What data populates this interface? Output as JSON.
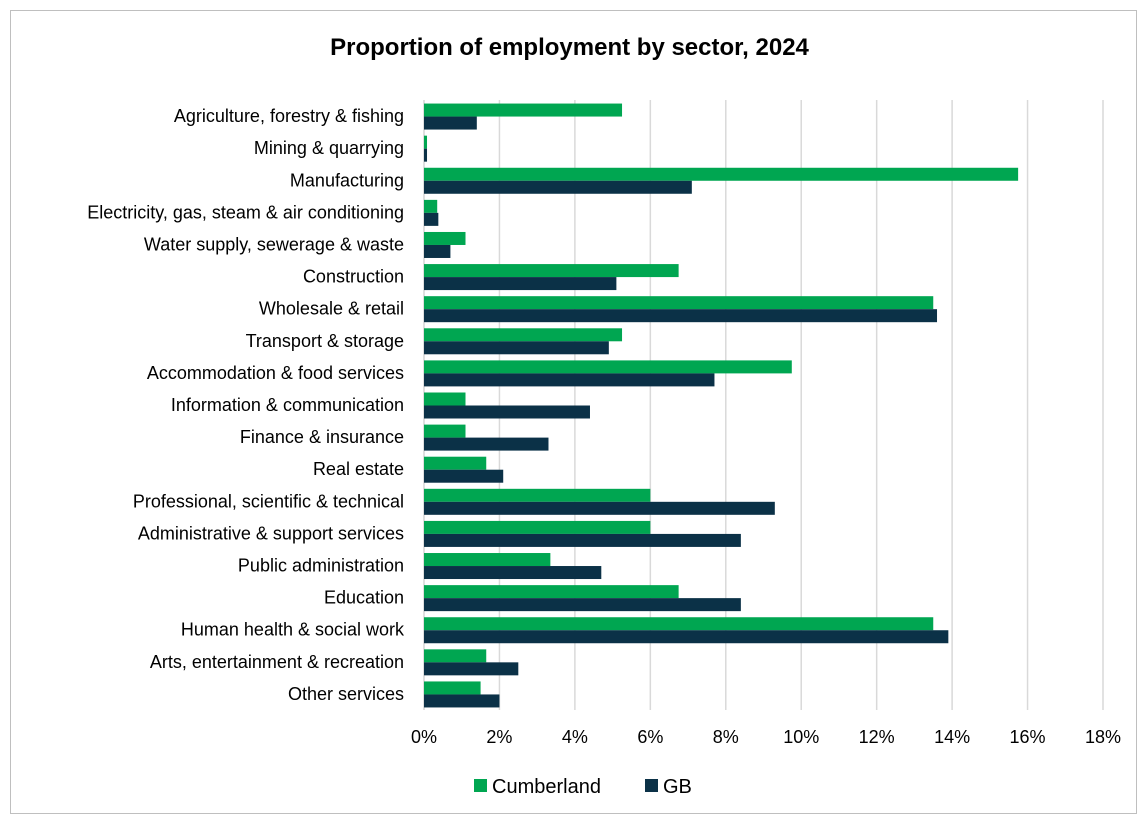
{
  "chart_data": {
    "type": "bar",
    "orientation": "horizontal",
    "title": "Proportion of employment by sector, 2024",
    "categories": [
      "Agriculture, forestry & fishing",
      "Mining & quarrying",
      "Manufacturing",
      "Electricity, gas, steam & air conditioning",
      "Water supply, sewerage & waste",
      "Construction",
      "Wholesale & retail",
      "Transport & storage",
      "Accommodation & food services",
      "Information & communication",
      "Finance & insurance",
      "Real estate",
      "Professional, scientific & technical",
      "Administrative & support services",
      "Public administration",
      "Education",
      "Human health & social work",
      "Arts, entertainment & recreation",
      "Other services"
    ],
    "series": [
      {
        "name": "Cumberland",
        "color": "#00a651",
        "values": [
          5.25,
          0.08,
          15.75,
          0.35,
          1.1,
          6.75,
          13.5,
          5.25,
          9.75,
          1.1,
          1.1,
          1.65,
          6.0,
          6.0,
          3.35,
          6.75,
          13.5,
          1.65,
          1.5
        ]
      },
      {
        "name": "GB",
        "color": "#0b3147",
        "values": [
          1.4,
          0.08,
          7.1,
          0.38,
          0.7,
          5.1,
          13.6,
          4.9,
          7.7,
          4.4,
          3.3,
          2.1,
          9.3,
          8.4,
          4.7,
          8.4,
          13.9,
          2.5,
          2.0
        ]
      }
    ],
    "xlim": [
      0,
      18
    ],
    "xticks": [
      "0%",
      "2%",
      "4%",
      "6%",
      "8%",
      "10%",
      "12%",
      "14%",
      "16%",
      "18%"
    ],
    "grid": true,
    "legend": "bottom"
  }
}
